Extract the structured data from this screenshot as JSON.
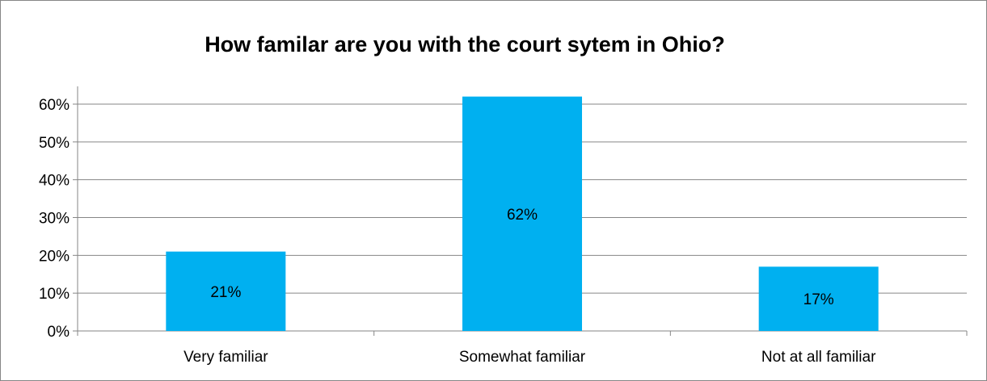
{
  "chart_data": {
    "type": "bar",
    "title": "How familar are you with the court sytem in Ohio?",
    "categories": [
      "Very familiar",
      "Somewhat familiar",
      "Not at all familiar"
    ],
    "values": [
      21,
      62,
      17
    ],
    "data_labels": [
      "21%",
      "62%",
      "17%"
    ],
    "ylim": [
      0,
      60
    ],
    "yticks": [
      0,
      10,
      20,
      30,
      40,
      50,
      60
    ],
    "ytick_labels": [
      "0%",
      "10%",
      "20%",
      "30%",
      "40%",
      "50%",
      "60%"
    ],
    "ylabel": "",
    "xlabel": "",
    "grid": true,
    "legend": "none",
    "colors": {
      "bar": "#00B0F0",
      "grid": "#868686",
      "frame": "#868686"
    }
  }
}
